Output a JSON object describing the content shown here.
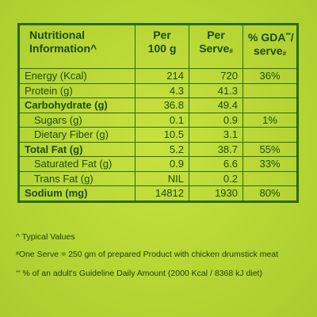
{
  "header": {
    "col1_line1": "Nutritional",
    "col1_line2": "Information^",
    "col2_line1": "Per",
    "col2_line2": "100 g",
    "col3_line1": "Per",
    "col3_line2": "Serve",
    "col3_marker": "#",
    "col4_line1": "% GDA",
    "col4_marker": "**",
    "col4_slash": "/",
    "col4_line2": "serve",
    "col4_line2_marker": "#"
  },
  "rows": [
    {
      "name": "Energy (Kcal)",
      "per100": "214",
      "perServe": "720",
      "gda": "36%",
      "bold": false,
      "sub": false
    },
    {
      "name": "Protein (g)",
      "per100": "4.3",
      "perServe": "41.3",
      "gda": "",
      "bold": false,
      "sub": false
    },
    {
      "name": "Carbohydrate (g)",
      "per100": "36.8",
      "perServe": "49.4",
      "gda": "",
      "bold": true,
      "sub": false
    },
    {
      "name": "Sugars (g)",
      "per100": "0.1",
      "perServe": "0.9",
      "gda": "1%",
      "bold": false,
      "sub": true
    },
    {
      "name": "Dietary Fiber (g)",
      "per100": "10.5",
      "perServe": "3.1",
      "gda": "",
      "bold": false,
      "sub": true
    },
    {
      "name": "Total Fat (g)",
      "per100": "5.2",
      "perServe": "38.7",
      "gda": "55%",
      "bold": true,
      "sub": false
    },
    {
      "name": "Saturated Fat (g)",
      "per100": "0.9",
      "perServe": "6.6",
      "gda": "33%",
      "bold": false,
      "sub": true
    },
    {
      "name": "Trans Fat (g)",
      "per100": "NIL",
      "perServe": "0.2",
      "gda": "",
      "bold": false,
      "sub": true
    },
    {
      "name": "Sodium (mg)",
      "per100": "14812",
      "perServe": "1930",
      "gda": "80%",
      "bold": true,
      "sub": false
    }
  ],
  "notes": {
    "typical": "^ Typical Values",
    "serve_marker": "#",
    "serve": "One Serve = 250 gm of prepared Product with chicken drumstick meat",
    "gda_marker": "**",
    "gda": " % of an adult's Guideline Daily Amount (2000 Kcal / 8368 kJ diet)"
  },
  "colors": {
    "background": "#b7d832",
    "border": "#2a6b1a",
    "text": "#1f4a14"
  }
}
